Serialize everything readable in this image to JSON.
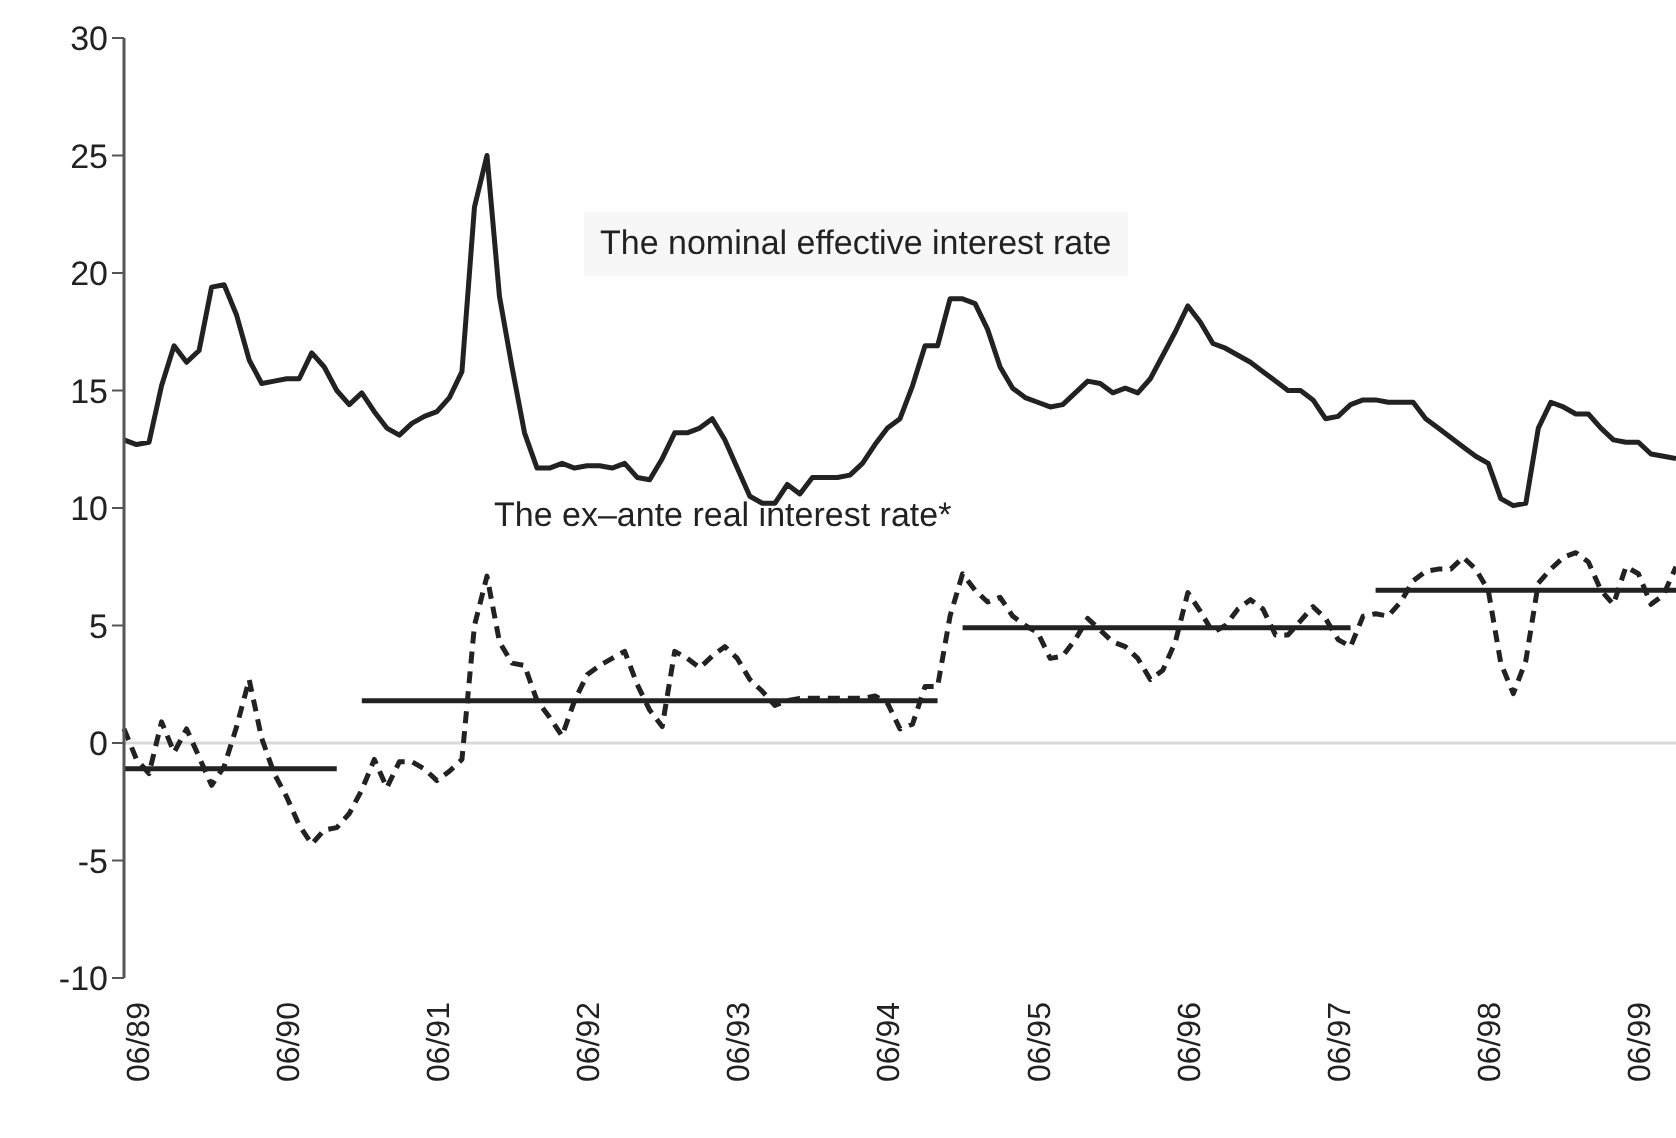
{
  "chart_data": {
    "type": "line",
    "categories": [
      null,
      "06/89",
      null,
      null,
      null,
      null,
      null,
      null,
      null,
      null,
      null,
      null,
      null,
      "06/90",
      null,
      null,
      null,
      null,
      null,
      null,
      null,
      null,
      null,
      null,
      null,
      "06/91",
      null,
      null,
      null,
      null,
      null,
      null,
      null,
      null,
      null,
      null,
      null,
      "06/92",
      null,
      null,
      null,
      null,
      null,
      null,
      null,
      null,
      null,
      null,
      null,
      "06/93",
      null,
      null,
      null,
      null,
      null,
      null,
      null,
      null,
      null,
      null,
      null,
      "06/94",
      null,
      null,
      null,
      null,
      null,
      null,
      null,
      null,
      null,
      null,
      null,
      "06/95",
      null,
      null,
      null,
      null,
      null,
      null,
      null,
      null,
      null,
      null,
      null,
      "06/96",
      null,
      null,
      null,
      null,
      null,
      null,
      null,
      null,
      null,
      null,
      null,
      "06/97",
      null,
      null,
      null,
      null,
      null,
      null,
      null,
      null,
      null,
      null,
      null,
      "06/98",
      null,
      null,
      null,
      null,
      null,
      null,
      null,
      null,
      null,
      null,
      null,
      "06/99",
      null,
      null,
      null
    ],
    "series": [
      {
        "name": "The nominal effective interest rate",
        "color": "#222222",
        "line_style": "solid",
        "values": [
          12.9,
          12.7,
          12.8,
          15.2,
          16.9,
          16.2,
          16.7,
          19.4,
          19.5,
          18.2,
          16.3,
          15.3,
          15.4,
          15.5,
          15.5,
          16.6,
          16.0,
          15.0,
          14.4,
          14.9,
          14.1,
          13.4,
          13.1,
          13.6,
          13.9,
          14.1,
          14.7,
          15.8,
          22.8,
          25.0,
          19.0,
          16.0,
          13.2,
          11.7,
          11.7,
          11.9,
          11.7,
          11.8,
          11.8,
          11.7,
          11.9,
          11.3,
          11.2,
          12.1,
          13.2,
          13.2,
          13.4,
          13.8,
          12.9,
          11.7,
          10.5,
          10.2,
          10.2,
          11.0,
          10.6,
          11.3,
          11.3,
          11.3,
          11.4,
          11.9,
          12.7,
          13.4,
          13.8,
          15.2,
          16.9,
          16.9,
          18.9,
          18.9,
          18.7,
          17.6,
          16.0,
          15.1,
          14.7,
          14.5,
          14.3,
          14.4,
          14.9,
          15.4,
          15.3,
          14.9,
          15.1,
          14.9,
          15.5,
          16.5,
          17.5,
          18.6,
          17.9,
          17.0,
          16.8,
          16.5,
          16.2,
          15.8,
          15.4,
          15.0,
          15.0,
          14.6,
          13.8,
          13.9,
          14.4,
          14.6,
          14.6,
          14.5,
          14.5,
          14.5,
          13.8,
          13.4,
          13.0,
          12.6,
          12.2,
          11.9,
          10.4,
          10.1,
          10.2,
          13.4,
          14.5,
          14.3,
          14.0,
          14.0,
          13.4,
          12.9,
          12.8,
          12.8,
          12.3,
          12.2,
          12.1
        ]
      },
      {
        "name": "The ex–ante real interest rate*",
        "color": "#222222",
        "line_style": "dashed",
        "values": [
          0.6,
          -0.7,
          -1.3,
          0.9,
          -0.4,
          0.6,
          -0.6,
          -1.8,
          -1.0,
          0.7,
          2.7,
          0.2,
          -1.3,
          -2.3,
          -3.5,
          -4.3,
          -3.7,
          -3.6,
          -3.0,
          -2.0,
          -0.7,
          -1.9,
          -0.8,
          -0.8,
          -1.1,
          -1.6,
          -1.2,
          -0.7,
          5.0,
          7.1,
          4.3,
          3.4,
          3.3,
          1.8,
          1.1,
          0.3,
          1.8,
          2.9,
          3.3,
          3.6,
          3.9,
          2.5,
          1.4,
          0.7,
          3.9,
          3.6,
          3.2,
          3.7,
          4.1,
          3.6,
          2.7,
          2.2,
          1.6,
          1.8,
          1.9,
          1.9,
          1.9,
          1.9,
          1.9,
          1.9,
          2.0,
          1.7,
          0.6,
          0.8,
          2.4,
          2.4,
          5.4,
          7.2,
          6.5,
          6.0,
          6.2,
          5.4,
          5.0,
          4.7,
          3.6,
          3.7,
          4.4,
          5.3,
          4.8,
          4.3,
          4.1,
          3.6,
          2.7,
          3.1,
          4.3,
          6.4,
          5.6,
          4.7,
          5.0,
          5.7,
          6.1,
          5.7,
          4.6,
          4.6,
          5.2,
          5.8,
          5.3,
          4.4,
          4.1,
          5.4,
          5.5,
          5.4,
          6.0,
          6.9,
          7.3,
          7.4,
          7.4,
          7.9,
          7.4,
          6.5,
          3.4,
          2.1,
          3.5,
          6.8,
          7.4,
          7.9,
          8.1,
          7.7,
          6.5,
          5.9,
          7.5,
          7.2,
          5.9,
          6.3,
          7.5
        ]
      },
      {
        "color": "#222222",
        "line_style": "solid",
        "values": [
          -1.1,
          -1.1,
          -1.1,
          -1.1,
          -1.1,
          -1.1,
          -1.1,
          -1.1,
          -1.1,
          -1.1,
          -1.1,
          -1.1,
          -1.1,
          -1.1,
          -1.1,
          -1.1,
          -1.1,
          -1.1,
          null,
          1.8,
          1.8,
          1.8,
          1.8,
          1.8,
          1.8,
          1.8,
          1.8,
          1.8,
          1.8,
          1.8,
          1.8,
          1.8,
          1.8,
          1.8,
          1.8,
          1.8,
          1.8,
          1.8,
          1.8,
          1.8,
          1.8,
          1.8,
          1.8,
          1.8,
          1.8,
          1.8,
          1.8,
          1.8,
          1.8,
          1.8,
          1.8,
          1.8,
          1.8,
          1.8,
          1.8,
          1.8,
          1.8,
          1.8,
          1.8,
          1.8,
          1.8,
          1.8,
          1.8,
          1.8,
          1.8,
          1.8,
          null,
          4.9,
          4.9,
          4.9,
          4.9,
          4.9,
          4.9,
          4.9,
          4.9,
          4.9,
          4.9,
          4.9,
          4.9,
          4.9,
          4.9,
          4.9,
          4.9,
          4.9,
          4.9,
          4.9,
          4.9,
          4.9,
          4.9,
          4.9,
          4.9,
          4.9,
          4.9,
          4.9,
          4.9,
          4.9,
          4.9,
          4.9,
          4.9,
          null,
          6.5,
          6.5,
          6.5,
          6.5,
          6.5,
          6.5,
          6.5,
          6.5,
          6.5,
          6.5,
          6.5,
          6.5,
          6.5,
          6.5,
          6.5,
          6.5,
          6.5,
          6.5,
          6.5,
          6.5,
          6.5,
          6.5,
          6.5,
          6.5,
          6.5
        ]
      }
    ],
    "ylim": [
      -10,
      30
    ],
    "yticks": [
      -10,
      -5,
      0,
      5,
      10,
      15,
      20,
      25,
      30
    ],
    "ref_lines": [
      {
        "axis": "y",
        "value": 0,
        "color": "#d9d9d9"
      }
    ],
    "grid": false,
    "legend": false,
    "marker": "none"
  }
}
